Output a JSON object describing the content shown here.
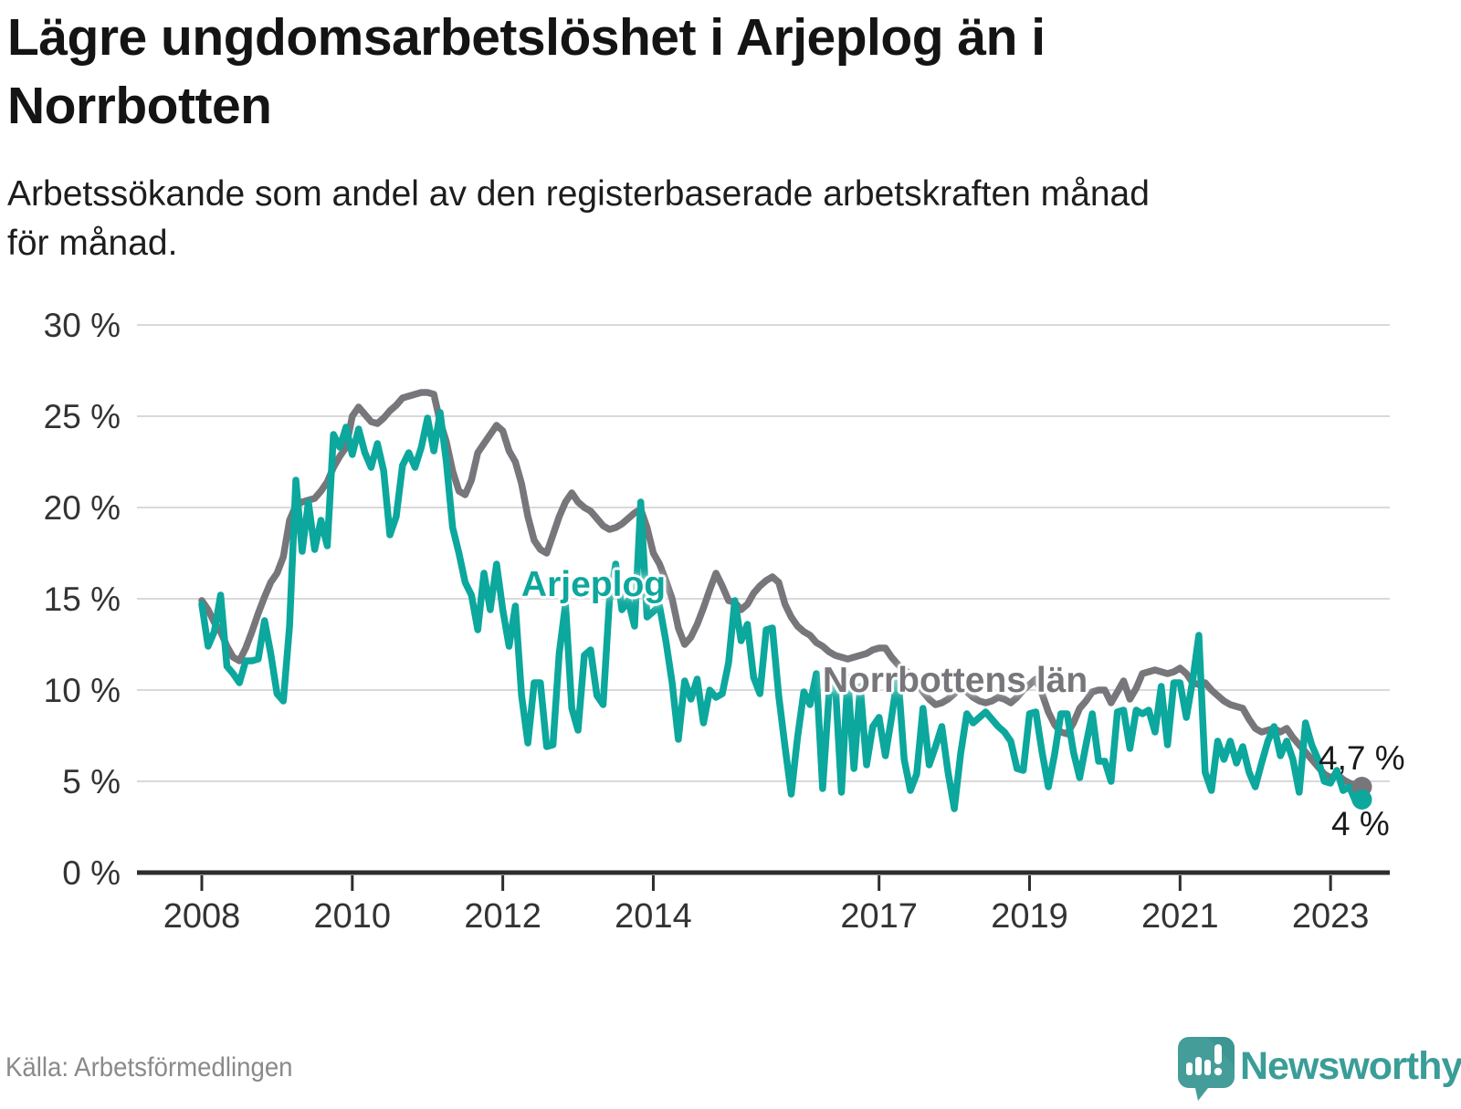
{
  "title": {
    "line1": "Lägre ungdomsarbetslöshet i Arjeplog än i",
    "line2": "Norrbotten"
  },
  "subtitle": {
    "line1": "Arbetssökande som andel av den registerbaserade arbetskraften månad",
    "line2": "för månad."
  },
  "source": "Källa: Arbetsförmedlingen",
  "logo": {
    "text": "Newsworthy",
    "icon": "newsworthy-speech-bubble-chart-icon",
    "icon_color": "#449d99",
    "icon_fold_color": "#37908c",
    "text_color": "#3a9d98"
  },
  "colors": {
    "background": "#ffffff",
    "title_text": "#141414",
    "axis_text": "#333333",
    "axis_line": "#2d2d2d",
    "gridline": "#d9d9d9",
    "arjeplog_teal": "#0ca79d",
    "norrbotten_gray": "#76767b",
    "source_text": "#8a8a8a"
  },
  "chart_data": {
    "type": "line",
    "title": "Lägre ungdomsarbetslöshet i Arjeplog än i Norrbotten",
    "subtitle": "Arbetssökande som andel av den registerbaserade arbetskraften månad för månad.",
    "unit": "percent of registered labour force",
    "x_start_month": "2008-01",
    "x_end_month": "2023-06",
    "points_per_series": 186,
    "ylim": [
      0,
      30
    ],
    "grid": "horizontal",
    "legend": "inline-labels",
    "y_ticks": [
      {
        "value": 0,
        "label": "0 %"
      },
      {
        "value": 5,
        "label": "5 %"
      },
      {
        "value": 10,
        "label": "10 %"
      },
      {
        "value": 15,
        "label": "15 %"
      },
      {
        "value": 20,
        "label": "20 %"
      },
      {
        "value": 25,
        "label": "25 %"
      },
      {
        "value": 30,
        "label": "30 %"
      }
    ],
    "x_ticks": [
      {
        "year": 2008,
        "label": "2008"
      },
      {
        "year": 2010,
        "label": "2010"
      },
      {
        "year": 2012,
        "label": "2012"
      },
      {
        "year": 2014,
        "label": "2014"
      },
      {
        "year": 2017,
        "label": "2017"
      },
      {
        "year": 2019,
        "label": "2019"
      },
      {
        "year": 2021,
        "label": "2021"
      },
      {
        "year": 2023,
        "label": "2023"
      }
    ],
    "series": [
      {
        "name": "Arjeplog",
        "color": "#0ca79d",
        "end_label": "4 %",
        "end_value": 4.0,
        "values": [
          14.7,
          12.4,
          13.2,
          15.2,
          11.3,
          10.9,
          10.4,
          11.6,
          11.6,
          11.7,
          13.8,
          12.0,
          9.8,
          9.4,
          13.5,
          21.5,
          17.6,
          20.3,
          17.7,
          19.3,
          17.9,
          24.0,
          23.3,
          24.4,
          22.9,
          24.3,
          23.0,
          22.2,
          23.5,
          22.0,
          18.5,
          19.5,
          22.3,
          23.0,
          22.2,
          23.3,
          24.9,
          23.1,
          25.2,
          22.5,
          18.9,
          17.5,
          15.9,
          15.2,
          13.3,
          16.4,
          14.4,
          16.9,
          14.4,
          12.4,
          14.6,
          9.7,
          7.1,
          10.4,
          10.4,
          6.9,
          7.0,
          12.0,
          14.7,
          9.0,
          7.8,
          11.9,
          12.2,
          9.7,
          9.2,
          14.9,
          16.9,
          14.4,
          14.9,
          13.5,
          20.3,
          14.0,
          14.3,
          14.6,
          12.7,
          10.4,
          7.3,
          10.5,
          9.5,
          10.6,
          8.2,
          10.0,
          9.6,
          9.8,
          11.5,
          14.9,
          12.7,
          13.6,
          10.7,
          9.8,
          13.3,
          13.4,
          9.7,
          6.9,
          4.3,
          7.4,
          9.9,
          9.2,
          10.9,
          4.6,
          9.7,
          10.5,
          4.4,
          10.7,
          5.7,
          10.2,
          5.9,
          8.0,
          8.5,
          6.4,
          8.5,
          10.9,
          6.2,
          4.5,
          5.4,
          9.0,
          5.9,
          6.9,
          8.0,
          5.5,
          3.5,
          6.5,
          8.7,
          8.2,
          8.5,
          8.8,
          8.4,
          8.0,
          7.7,
          7.2,
          5.7,
          5.6,
          8.7,
          8.8,
          6.6,
          4.7,
          6.5,
          8.7,
          8.7,
          6.6,
          5.2,
          7.0,
          8.7,
          6.1,
          6.1,
          5.0,
          8.8,
          8.9,
          6.8,
          8.9,
          8.7,
          8.9,
          7.7,
          10.2,
          7.0,
          10.4,
          10.4,
          8.5,
          10.5,
          13.0,
          5.5,
          4.5,
          7.2,
          6.2,
          7.2,
          6.0,
          6.9,
          5.5,
          4.7,
          6.0,
          7.2,
          8.0,
          6.4,
          7.2,
          6.2,
          4.4,
          8.2,
          7.0,
          6.2,
          5.0,
          4.9,
          5.6,
          4.5,
          4.7,
          3.9,
          4.0
        ]
      },
      {
        "name": "Norrbottens län",
        "color": "#76767b",
        "end_label": "4,7 %",
        "end_value": 4.7,
        "values": [
          14.9,
          14.4,
          13.7,
          13.2,
          12.4,
          11.8,
          11.6,
          12.3,
          13.2,
          14.2,
          15.1,
          15.9,
          16.4,
          17.3,
          19.3,
          20.1,
          20.3,
          20.4,
          20.5,
          20.9,
          21.4,
          22.2,
          22.8,
          23.3,
          25.0,
          25.5,
          25.1,
          24.7,
          24.6,
          24.9,
          25.3,
          25.6,
          26.0,
          26.1,
          26.2,
          26.3,
          26.3,
          26.2,
          24.7,
          23.6,
          22.0,
          20.9,
          20.7,
          21.5,
          23.0,
          23.5,
          24.0,
          24.5,
          24.2,
          23.1,
          22.5,
          21.3,
          19.5,
          18.2,
          17.7,
          17.5,
          18.5,
          19.5,
          20.3,
          20.8,
          20.3,
          20.0,
          19.8,
          19.4,
          19.0,
          18.8,
          18.9,
          19.1,
          19.4,
          19.7,
          19.9,
          18.9,
          17.5,
          16.9,
          16.0,
          15.0,
          13.4,
          12.5,
          12.9,
          13.6,
          14.5,
          15.5,
          16.4,
          15.7,
          14.9,
          14.8,
          14.4,
          14.7,
          15.3,
          15.7,
          16.0,
          16.2,
          15.9,
          14.7,
          14.0,
          13.5,
          13.2,
          13.0,
          12.6,
          12.4,
          12.1,
          11.9,
          11.8,
          11.7,
          11.8,
          11.9,
          12.0,
          12.2,
          12.3,
          12.3,
          11.8,
          11.4,
          11.1,
          10.9,
          10.4,
          9.9,
          9.5,
          9.2,
          9.3,
          9.5,
          9.8,
          10.2,
          9.9,
          9.6,
          9.4,
          9.3,
          9.4,
          9.6,
          9.5,
          9.3,
          9.6,
          10.0,
          10.3,
          10.6,
          9.8,
          8.8,
          8.1,
          7.7,
          7.6,
          8.2,
          9.0,
          9.4,
          9.9,
          10.0,
          10.0,
          9.3,
          9.9,
          10.5,
          9.5,
          10.1,
          10.9,
          11.0,
          11.1,
          11.0,
          10.9,
          11.0,
          11.2,
          10.9,
          10.4,
          10.3,
          10.4,
          10.0,
          9.7,
          9.4,
          9.2,
          9.1,
          9.0,
          8.4,
          7.9,
          7.7,
          7.8,
          7.9,
          7.7,
          7.9,
          7.4,
          7.0,
          6.6,
          6.2,
          5.8,
          5.4,
          5.2,
          5.4,
          5.1,
          4.9,
          4.8,
          4.7
        ]
      }
    ]
  }
}
